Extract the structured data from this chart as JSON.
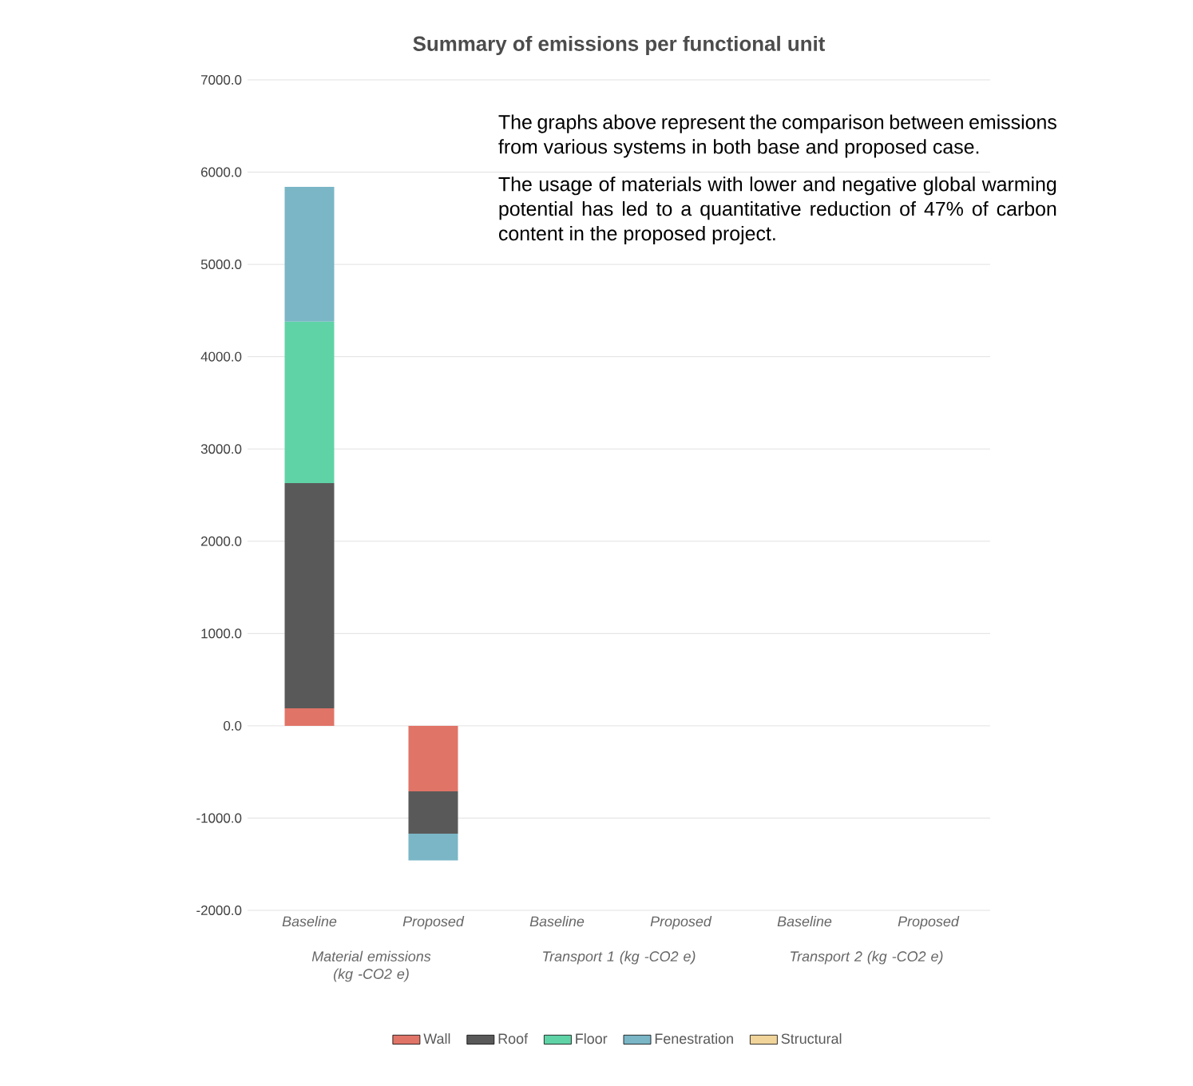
{
  "chart_data": {
    "type": "bar",
    "stacked": true,
    "title": "Summary of emissions per functional unit",
    "categories": [
      "Baseline",
      "Proposed",
      "Baseline",
      "Proposed",
      "Baseline",
      "Proposed"
    ],
    "series": [
      {
        "name": "Wall",
        "color": "#e07467",
        "values": [
          190,
          -710,
          null,
          null,
          null,
          null
        ]
      },
      {
        "name": "Roof",
        "color": "#595959",
        "values": [
          2440,
          -460,
          null,
          null,
          null,
          null
        ]
      },
      {
        "name": "Floor",
        "color": "#5fd3a6",
        "values": [
          1750,
          null,
          null,
          null,
          null,
          null
        ]
      },
      {
        "name": "Fenestration",
        "color": "#7ab6c6",
        "values": [
          1460,
          -290,
          null,
          null,
          null,
          null
        ]
      },
      {
        "name": "Structural",
        "color": "#f0d49a",
        "values": [
          null,
          null,
          null,
          null,
          null,
          null
        ]
      }
    ],
    "ylim": [
      -2000,
      7000
    ],
    "yticks": [
      {
        "value": -2000,
        "label": "-2000.0"
      },
      {
        "value": -1000,
        "label": "-1000.0"
      },
      {
        "value": 0,
        "label": "0.0"
      },
      {
        "value": 1000,
        "label": "1000.0"
      },
      {
        "value": 2000,
        "label": "2000.0"
      },
      {
        "value": 3000,
        "label": "3000.0"
      },
      {
        "value": 4000,
        "label": "4000.0"
      },
      {
        "value": 5000,
        "label": "5000.0"
      },
      {
        "value": 6000,
        "label": "6000.0"
      },
      {
        "value": 7000,
        "label": "7000.0"
      }
    ],
    "grid": "y",
    "legend": "bottom",
    "annotations": [
      "Material emissions (kg -CO2 e)",
      "Transport 1 (kg -CO2 e)",
      "Transport 2 (kg -CO2 e)",
      "The graphs above represent the comparison between emissions from various systems in both base and proposed case.",
      "The usage of materials with lower and negative global warming potential has led to a quantitative reduction of 47% of carbon content in the proposed project."
    ]
  }
}
